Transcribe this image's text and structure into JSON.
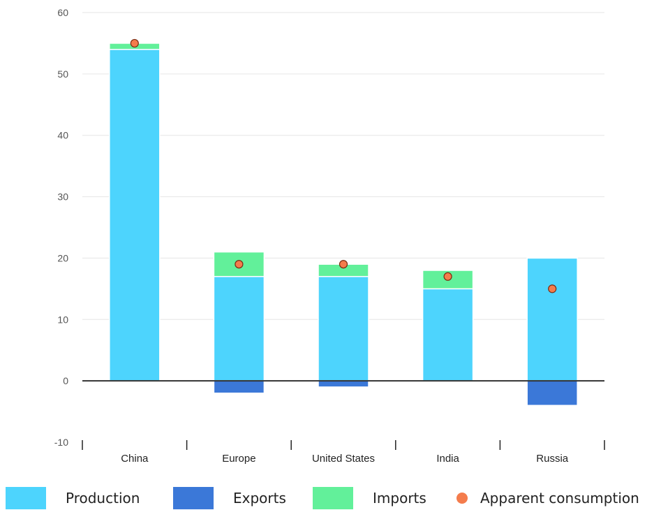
{
  "chart_data": {
    "type": "bar",
    "stacked": true,
    "categories": [
      "China",
      "Europe",
      "United States",
      "India",
      "Russia"
    ],
    "series": [
      {
        "name": "Production",
        "kind": "bar",
        "color": "#4dd4fd",
        "values": [
          54,
          17,
          17,
          15,
          20
        ]
      },
      {
        "name": "Exports",
        "kind": "bar",
        "color": "#3b78d8",
        "values": [
          0,
          -2,
          -1,
          0,
          -4
        ]
      },
      {
        "name": "Imports",
        "kind": "bar",
        "color": "#62f09a",
        "values": [
          1,
          4,
          2,
          3,
          0
        ]
      },
      {
        "name": "Apparent consumption",
        "kind": "dot",
        "color": "#f47c4c",
        "values": [
          55,
          19,
          19,
          17,
          15
        ]
      }
    ],
    "yticks": [
      "60",
      "50",
      "40",
      "30",
      "20",
      "10",
      "0",
      "-10"
    ],
    "ylim": [
      -10,
      60
    ],
    "grid": true,
    "legend": "bottom",
    "title": "",
    "xlabel": "",
    "ylabel": ""
  }
}
